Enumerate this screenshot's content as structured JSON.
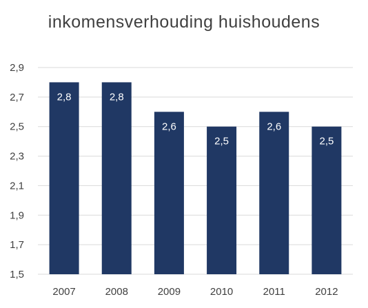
{
  "chart_data": {
    "type": "bar",
    "title": "inkomensverhouding huishoudens",
    "categories": [
      "2007",
      "2008",
      "2009",
      "2010",
      "2011",
      "2012"
    ],
    "values": [
      2.8,
      2.8,
      2.6,
      2.5,
      2.6,
      2.5
    ],
    "value_labels": [
      "2,8",
      "2,8",
      "2,6",
      "2,5",
      "2,6",
      "2,5"
    ],
    "yticks": [
      1.5,
      1.7,
      1.9,
      2.1,
      2.3,
      2.5,
      2.7,
      2.9
    ],
    "ytick_labels": [
      "1,5",
      "1,7",
      "1,9",
      "2,1",
      "2,3",
      "2,5",
      "2,7",
      "2,9"
    ],
    "ylim": [
      1.5,
      2.9
    ],
    "grid": true,
    "legend": "none",
    "colors": {
      "bar": "#203864",
      "grid": "#d9d9d9",
      "text": "#404040",
      "data_label": "#ffffff"
    }
  }
}
